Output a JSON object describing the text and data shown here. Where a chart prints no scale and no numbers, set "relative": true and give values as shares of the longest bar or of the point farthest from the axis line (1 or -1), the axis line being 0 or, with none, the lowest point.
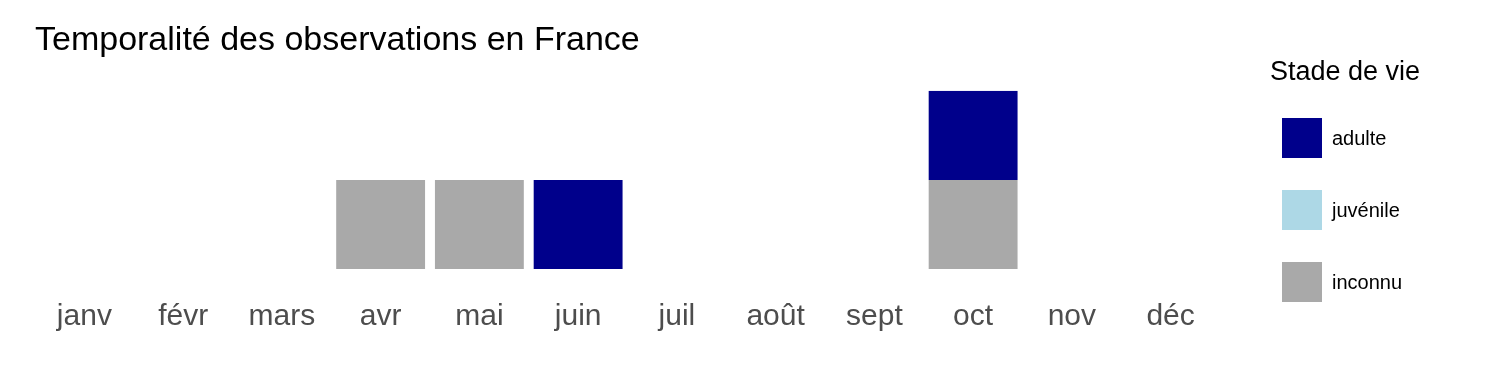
{
  "chart_data": {
    "type": "bar",
    "title": "Temporalité des observations en France",
    "legend_title": "Stade de vie",
    "categories": [
      "janv",
      "févr",
      "mars",
      "avr",
      "mai",
      "juin",
      "juil",
      "août",
      "sept",
      "oct",
      "nov",
      "déc"
    ],
    "stacked": true,
    "relative": true,
    "legend": "right",
    "grid": false,
    "series": [
      {
        "name": "inconnu",
        "color": "#a9a9a9",
        "values": [
          0,
          0,
          0,
          0.5,
          0.5,
          0,
          0,
          0,
          0,
          0.5,
          0,
          0
        ]
      },
      {
        "name": "juvénile",
        "color": "#add8e6",
        "values": [
          0,
          0,
          0,
          0,
          0,
          0,
          0,
          0,
          0,
          0,
          0,
          0
        ]
      },
      {
        "name": "adulte",
        "color": "#00008b",
        "values": [
          0,
          0,
          0,
          0,
          0,
          0.5,
          0,
          0,
          0,
          0.5,
          0,
          0
        ]
      }
    ]
  }
}
